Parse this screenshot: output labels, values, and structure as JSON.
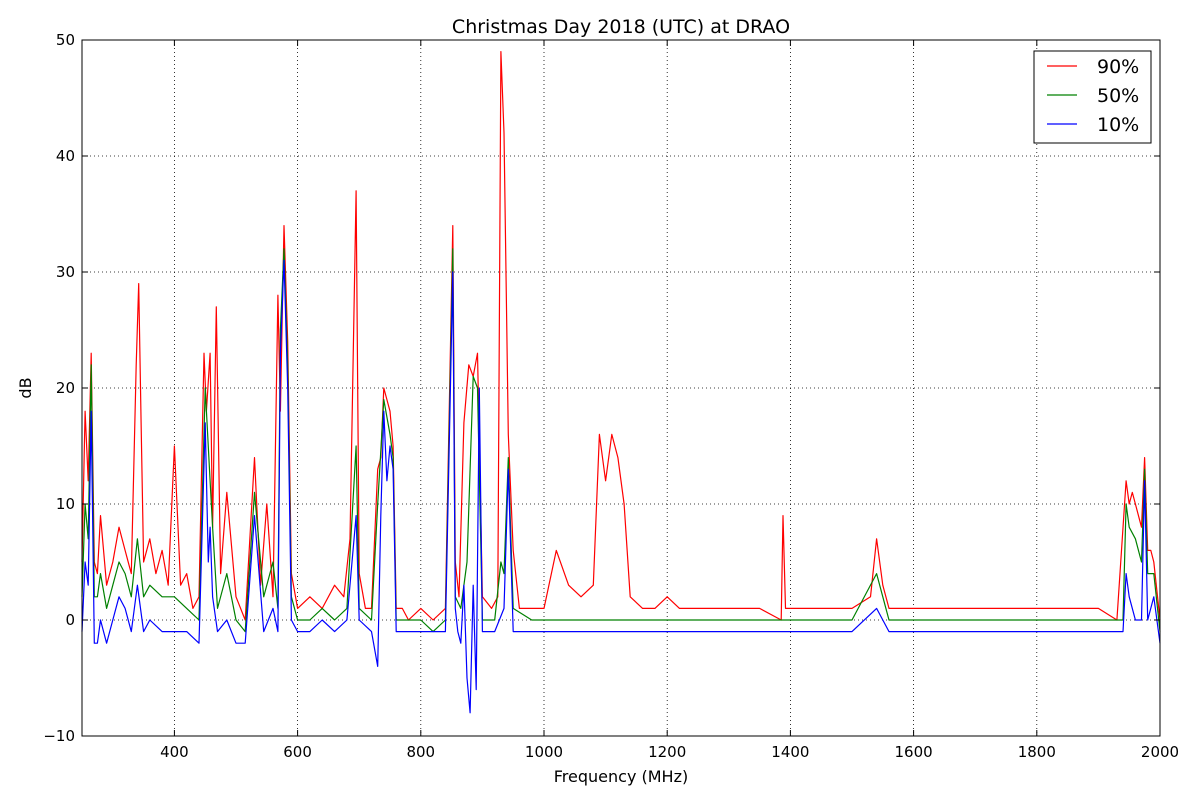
{
  "chart_data": {
    "type": "line",
    "title": "Christmas Day 2018 (UTC) at DRAO",
    "xlabel": "Frequency (MHz)",
    "ylabel": "dB",
    "xlim": [
      250,
      2000
    ],
    "ylim": [
      -10,
      50
    ],
    "xticks": [
      400,
      600,
      800,
      1000,
      1200,
      1400,
      1600,
      1800,
      2000
    ],
    "yticks": [
      -10,
      0,
      10,
      20,
      30,
      40,
      50
    ],
    "grid": true,
    "legend_position": "top-right",
    "series": [
      {
        "name": "90%",
        "color": "#ff0000",
        "x": [
          250,
          255,
          260,
          265,
          270,
          275,
          280,
          290,
          300,
          310,
          320,
          330,
          338,
          342,
          346,
          350,
          360,
          370,
          380,
          390,
          400,
          410,
          420,
          430,
          440,
          448,
          452,
          458,
          462,
          468,
          475,
          485,
          500,
          515,
          530,
          540,
          550,
          560,
          568,
          572,
          578,
          584,
          590,
          600,
          620,
          640,
          660,
          675,
          685,
          695,
          700,
          710,
          720,
          730,
          735,
          740,
          745,
          750,
          755,
          760,
          770,
          780,
          800,
          820,
          840,
          852,
          856,
          862,
          870,
          878,
          885,
          892,
          900,
          915,
          925,
          930,
          935,
          942,
          950,
          960,
          980,
          1000,
          1020,
          1040,
          1060,
          1080,
          1090,
          1100,
          1110,
          1120,
          1130,
          1140,
          1160,
          1180,
          1200,
          1220,
          1250,
          1300,
          1350,
          1385,
          1388,
          1392,
          1400,
          1450,
          1500,
          1530,
          1540,
          1550,
          1560,
          1600,
          1650,
          1700,
          1750,
          1800,
          1850,
          1900,
          1930,
          1945,
          1950,
          1955,
          1960,
          1970,
          1975,
          1980,
          1985,
          1990,
          2000
        ],
        "y": [
          5,
          18,
          12,
          23,
          5,
          4,
          9,
          3,
          5,
          8,
          6,
          4,
          22,
          29,
          17,
          5,
          7,
          4,
          6,
          3,
          15,
          3,
          4,
          1,
          2,
          23,
          18,
          23,
          8,
          27,
          4,
          11,
          2,
          0,
          14,
          3,
          10,
          2,
          28,
          18,
          34,
          24,
          4,
          1,
          2,
          1,
          3,
          2,
          7,
          37,
          4,
          1,
          1,
          13,
          14,
          20,
          19,
          18,
          15,
          1,
          1,
          0,
          1,
          0,
          1,
          34,
          5,
          2,
          17,
          22,
          21,
          23,
          2,
          1,
          2,
          49,
          42,
          16,
          6,
          1,
          1,
          1,
          6,
          3,
          2,
          3,
          16,
          12,
          16,
          14,
          10,
          2,
          1,
          1,
          2,
          1,
          1,
          1,
          1,
          0,
          9,
          1,
          1,
          1,
          1,
          2,
          7,
          3,
          1,
          1,
          1,
          1,
          1,
          1,
          1,
          1,
          0,
          12,
          10,
          11,
          10,
          8,
          14,
          6,
          6,
          5,
          0
        ]
      },
      {
        "name": "50%",
        "color": "#008000",
        "x": [
          250,
          255,
          260,
          265,
          270,
          275,
          280,
          290,
          300,
          310,
          320,
          330,
          340,
          350,
          360,
          380,
          400,
          420,
          440,
          450,
          458,
          462,
          470,
          485,
          500,
          515,
          530,
          545,
          560,
          568,
          572,
          578,
          584,
          590,
          600,
          620,
          640,
          660,
          680,
          695,
          700,
          720,
          730,
          740,
          750,
          755,
          760,
          780,
          800,
          820,
          840,
          852,
          856,
          865,
          875,
          885,
          892,
          900,
          920,
          930,
          935,
          942,
          950,
          980,
          1000,
          1050,
          1100,
          1150,
          1200,
          1250,
          1300,
          1350,
          1400,
          1450,
          1500,
          1540,
          1550,
          1560,
          1600,
          1650,
          1700,
          1750,
          1800,
          1850,
          1900,
          1940,
          1945,
          1950,
          1960,
          1970,
          1975,
          1980,
          1990,
          2000
        ],
        "y": [
          2,
          10,
          7,
          22,
          2,
          2,
          4,
          1,
          3,
          5,
          4,
          2,
          7,
          2,
          3,
          2,
          2,
          1,
          0,
          20,
          12,
          8,
          1,
          4,
          0,
          -1,
          11,
          2,
          5,
          1,
          25,
          32,
          22,
          2,
          0,
          0,
          1,
          0,
          1,
          15,
          1,
          0,
          10,
          19,
          16,
          14,
          0,
          0,
          0,
          -1,
          0,
          32,
          2,
          1,
          5,
          21,
          20,
          0,
          0,
          5,
          4,
          14,
          1,
          0,
          0,
          0,
          0,
          0,
          0,
          0,
          0,
          0,
          0,
          0,
          0,
          4,
          2,
          0,
          0,
          0,
          0,
          0,
          0,
          0,
          0,
          0,
          10,
          8,
          7,
          5,
          13,
          4,
          4,
          -1
        ]
      },
      {
        "name": "10%",
        "color": "#0000ff",
        "x": [
          250,
          255,
          260,
          265,
          270,
          275,
          280,
          290,
          300,
          310,
          320,
          330,
          340,
          350,
          360,
          380,
          400,
          420,
          440,
          450,
          455,
          458,
          462,
          470,
          485,
          500,
          515,
          530,
          545,
          560,
          568,
          572,
          578,
          584,
          590,
          600,
          620,
          640,
          660,
          680,
          695,
          700,
          720,
          730,
          735,
          740,
          745,
          750,
          755,
          760,
          780,
          800,
          820,
          840,
          852,
          856,
          860,
          865,
          870,
          875,
          880,
          885,
          890,
          895,
          900,
          920,
          935,
          942,
          950,
          980,
          1000,
          1050,
          1100,
          1150,
          1200,
          1250,
          1300,
          1350,
          1400,
          1450,
          1500,
          1540,
          1550,
          1560,
          1600,
          1650,
          1700,
          1750,
          1800,
          1850,
          1900,
          1940,
          1945,
          1950,
          1960,
          1970,
          1975,
          1980,
          1990,
          2000
        ],
        "y": [
          -1,
          5,
          3,
          18,
          -2,
          -2,
          0,
          -2,
          0,
          2,
          1,
          -1,
          3,
          -1,
          0,
          -1,
          -1,
          -1,
          -2,
          17,
          5,
          8,
          2,
          -1,
          0,
          -2,
          -2,
          9,
          -1,
          1,
          -1,
          23,
          31,
          20,
          0,
          -1,
          -1,
          0,
          -1,
          0,
          9,
          0,
          -1,
          -4,
          9,
          18,
          12,
          15,
          13,
          -1,
          -1,
          -1,
          -1,
          -1,
          30,
          1,
          -1,
          -2,
          3,
          -5,
          -8,
          3,
          -6,
          20,
          -1,
          -1,
          1,
          13,
          -1,
          -1,
          -1,
          -1,
          -1,
          -1,
          -1,
          -1,
          -1,
          -1,
          -1,
          -1,
          -1,
          1,
          0,
          -1,
          -1,
          -1,
          -1,
          -1,
          -1,
          -1,
          -1,
          -1,
          4,
          2,
          0,
          0,
          12,
          0,
          2,
          -2
        ]
      }
    ]
  }
}
